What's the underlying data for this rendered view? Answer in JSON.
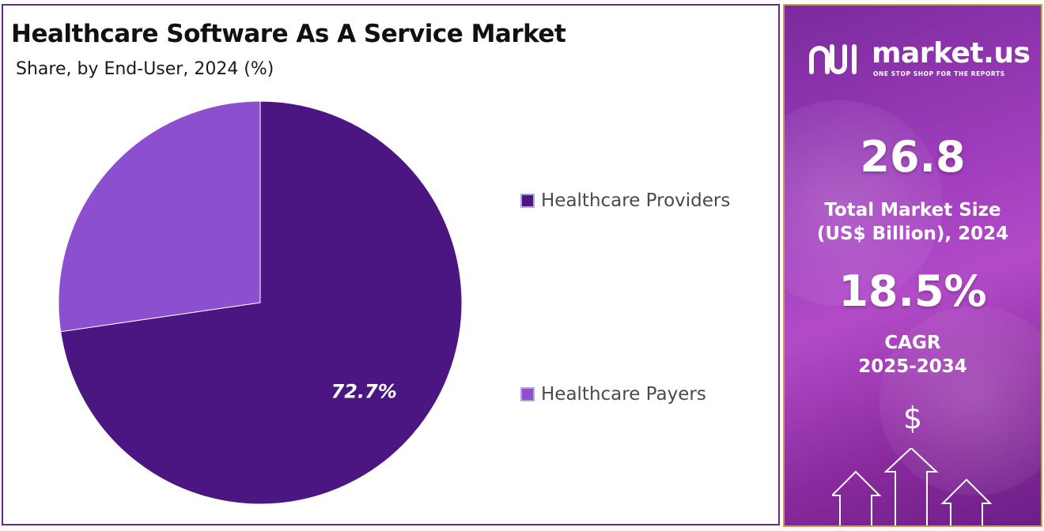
{
  "chart_data": {
    "type": "pie",
    "title": "Healthcare Software As A Service Market",
    "subtitle": "Share, by End-User, 2024 (%)",
    "slices": [
      {
        "label": "Healthcare Providers",
        "value": 72.7,
        "color": "#4b1682",
        "data_label": "72.7%"
      },
      {
        "label": "Healthcare Payers",
        "value": 27.3,
        "color": "#8b4fd0",
        "data_label": ""
      }
    ],
    "start_angle_deg": 0,
    "direction": "clockwise",
    "legend_placement": "right"
  },
  "sidebar": {
    "logo_text": "market.us",
    "logo_tagline": "ONE STOP SHOP FOR THE REPORTS",
    "market_size_value": "26.8",
    "market_size_label_line1": "Total Market Size",
    "market_size_label_line2": "(US$ Billion), 2024",
    "cagr_value": "18.5%",
    "cagr_label_line1": "CAGR",
    "cagr_label_line2": "2025-2034",
    "dollar_symbol": "$",
    "icons": [
      "market-us-logo-icon",
      "dollar-icon",
      "up-arrows-icon"
    ],
    "colors": {
      "panel_start": "#7a2a9e",
      "panel_mid": "#b34bc8",
      "border": "#c9a24a"
    }
  }
}
